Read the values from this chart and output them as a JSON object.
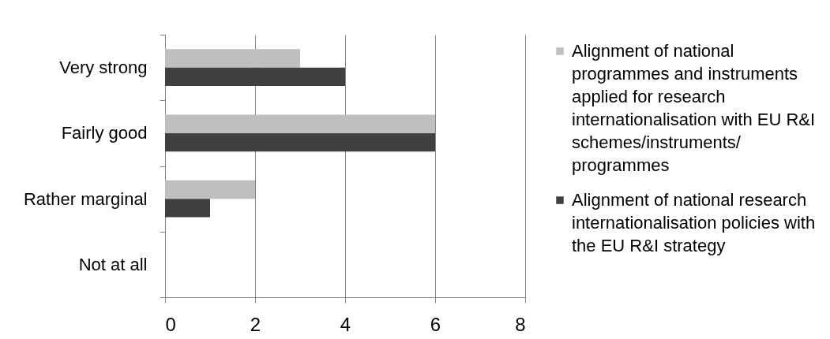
{
  "chart_data": {
    "type": "bar",
    "orientation": "horizontal",
    "categories": [
      "Very strong",
      "Fairly good",
      "Rather marginal",
      "Not at all"
    ],
    "series": [
      {
        "name": "Alignment of national programmes and instruments applied for research internationalisation with EU R&I schemes/instruments/programmes",
        "color": "#bfbfbf",
        "values": [
          3,
          6,
          2,
          0
        ]
      },
      {
        "name": "Alignment of national research internationalisation policies with the EU R&I strategy",
        "color": "#404040",
        "values": [
          4,
          6,
          1,
          0
        ]
      }
    ],
    "xlim": [
      0,
      8
    ],
    "xticks": [
      0,
      2,
      4,
      6,
      8
    ],
    "grid": "x",
    "legend": "right"
  }
}
